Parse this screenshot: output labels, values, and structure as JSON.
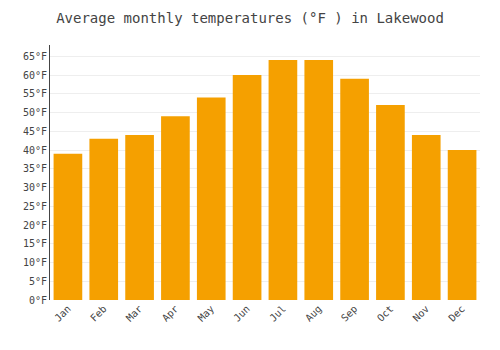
{
  "chart_data": {
    "type": "bar",
    "title": "Average monthly temperatures (°F ) in Lakewood",
    "categories": [
      "Jan",
      "Feb",
      "Mar",
      "Apr",
      "May",
      "Jun",
      "Jul",
      "Aug",
      "Sep",
      "Oct",
      "Nov",
      "Dec"
    ],
    "values": [
      39,
      43,
      44,
      49,
      54,
      60,
      64,
      64,
      59,
      52,
      44,
      40
    ],
    "color": "#F5A000",
    "ylim": [
      0,
      68
    ],
    "yticks": [
      {
        "value": 0,
        "label": "0°F"
      },
      {
        "value": 5,
        "label": "5°F"
      },
      {
        "value": 10,
        "label": "10°F"
      },
      {
        "value": 15,
        "label": "15°F"
      },
      {
        "value": 20,
        "label": "20°F"
      },
      {
        "value": 25,
        "label": "25°F"
      },
      {
        "value": 30,
        "label": "30°F"
      },
      {
        "value": 35,
        "label": "35°F"
      },
      {
        "value": 40,
        "label": "40°F"
      },
      {
        "value": 45,
        "label": "45°F"
      },
      {
        "value": 50,
        "label": "50°F"
      },
      {
        "value": 55,
        "label": "55°F"
      },
      {
        "value": 60,
        "label": "60°F"
      },
      {
        "value": 65,
        "label": "65°F"
      }
    ],
    "grid": true
  }
}
